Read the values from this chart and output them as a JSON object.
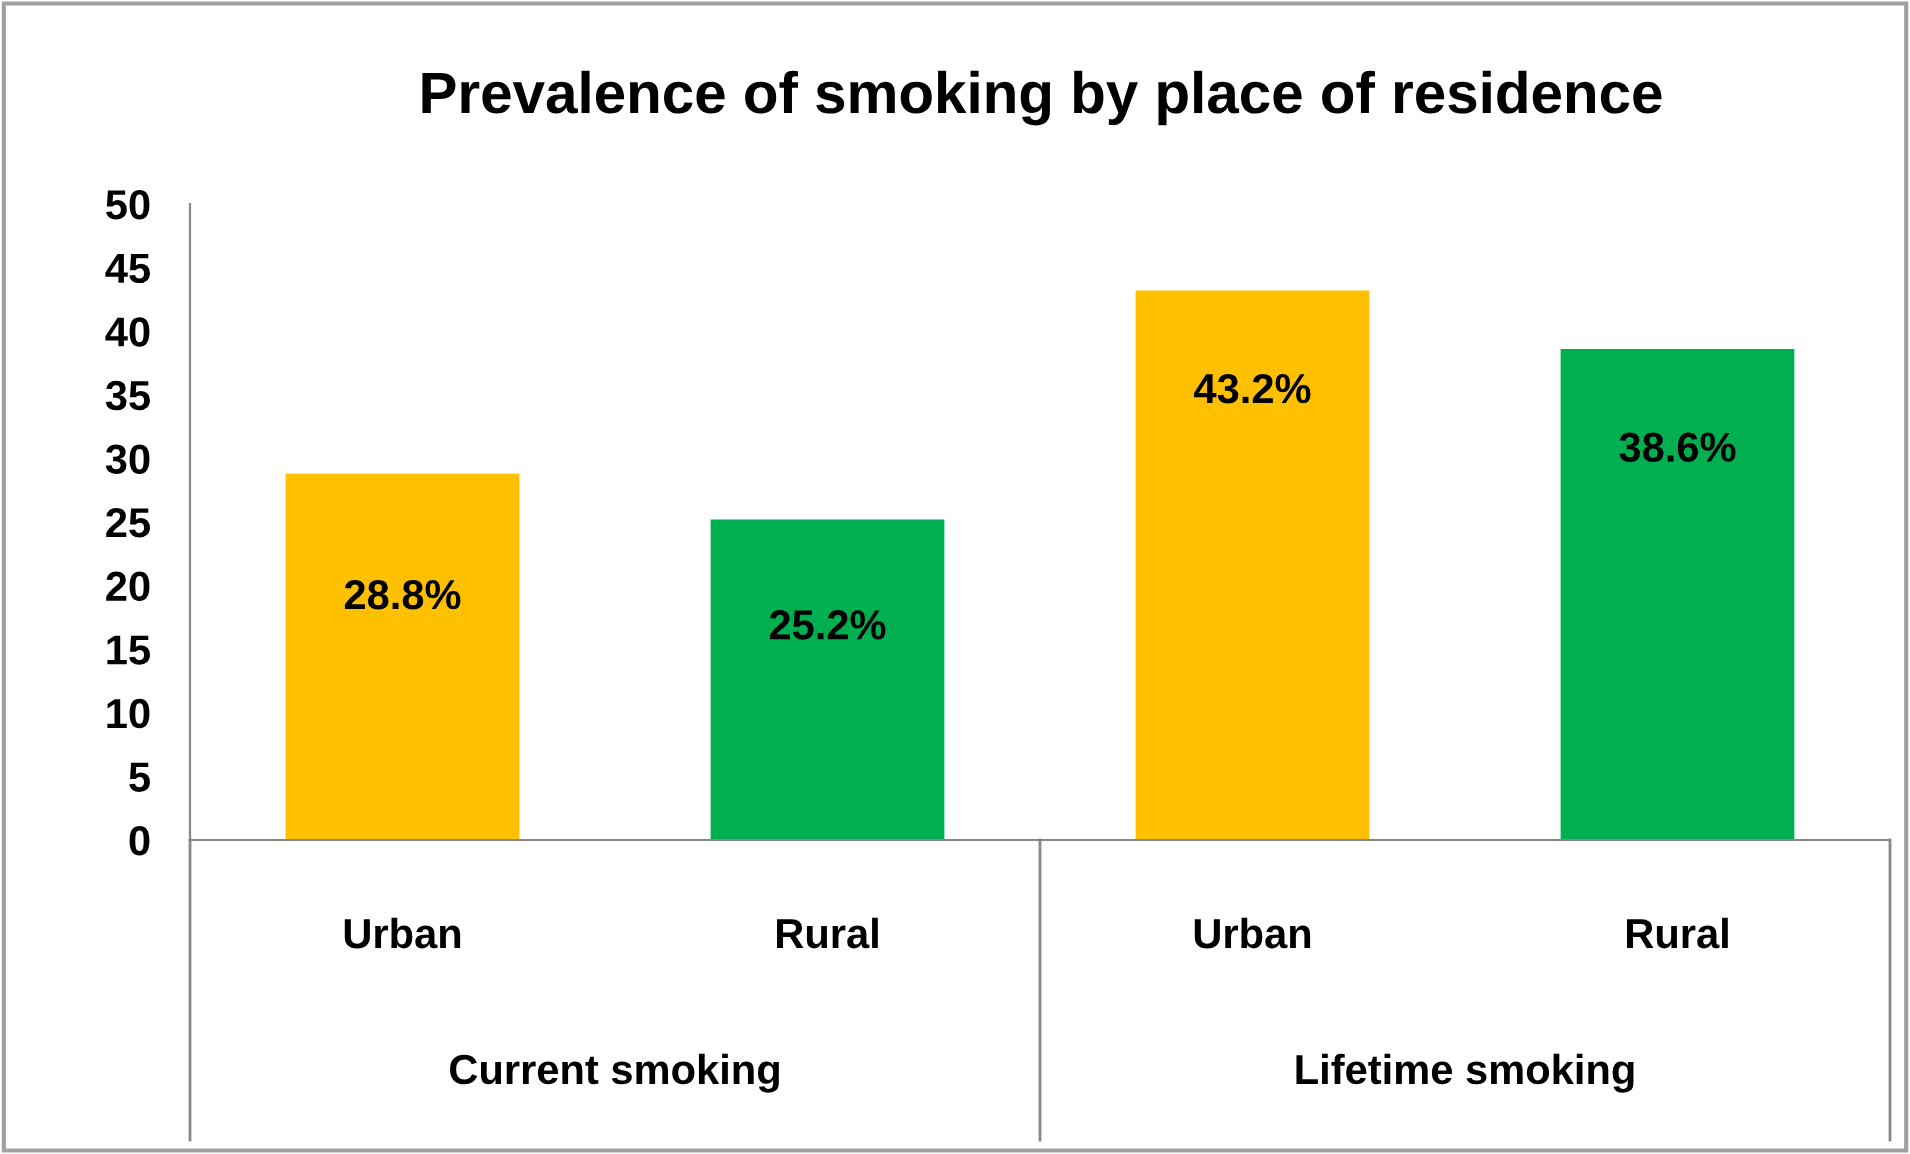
{
  "chart_data": {
    "type": "bar",
    "title": "Prevalence of smoking by place of residence",
    "categories": [
      "Urban",
      "Rural",
      "Urban",
      "Rural"
    ],
    "values": [
      28.8,
      25.2,
      43.2,
      38.6
    ],
    "colors": [
      "#ffc000",
      "#00b050",
      "#ffc000",
      "#00b050"
    ],
    "value_labels": [
      "28.8%",
      "25.2%",
      "43.2%",
      "38.6%"
    ],
    "annotations": [
      "Current smoking",
      "Lifetime smoking"
    ],
    "ylim": [
      0,
      50
    ],
    "yticks": [
      0,
      5,
      10,
      15,
      20,
      25,
      30,
      35,
      40,
      45,
      50
    ],
    "grid": false,
    "legend": false
  }
}
